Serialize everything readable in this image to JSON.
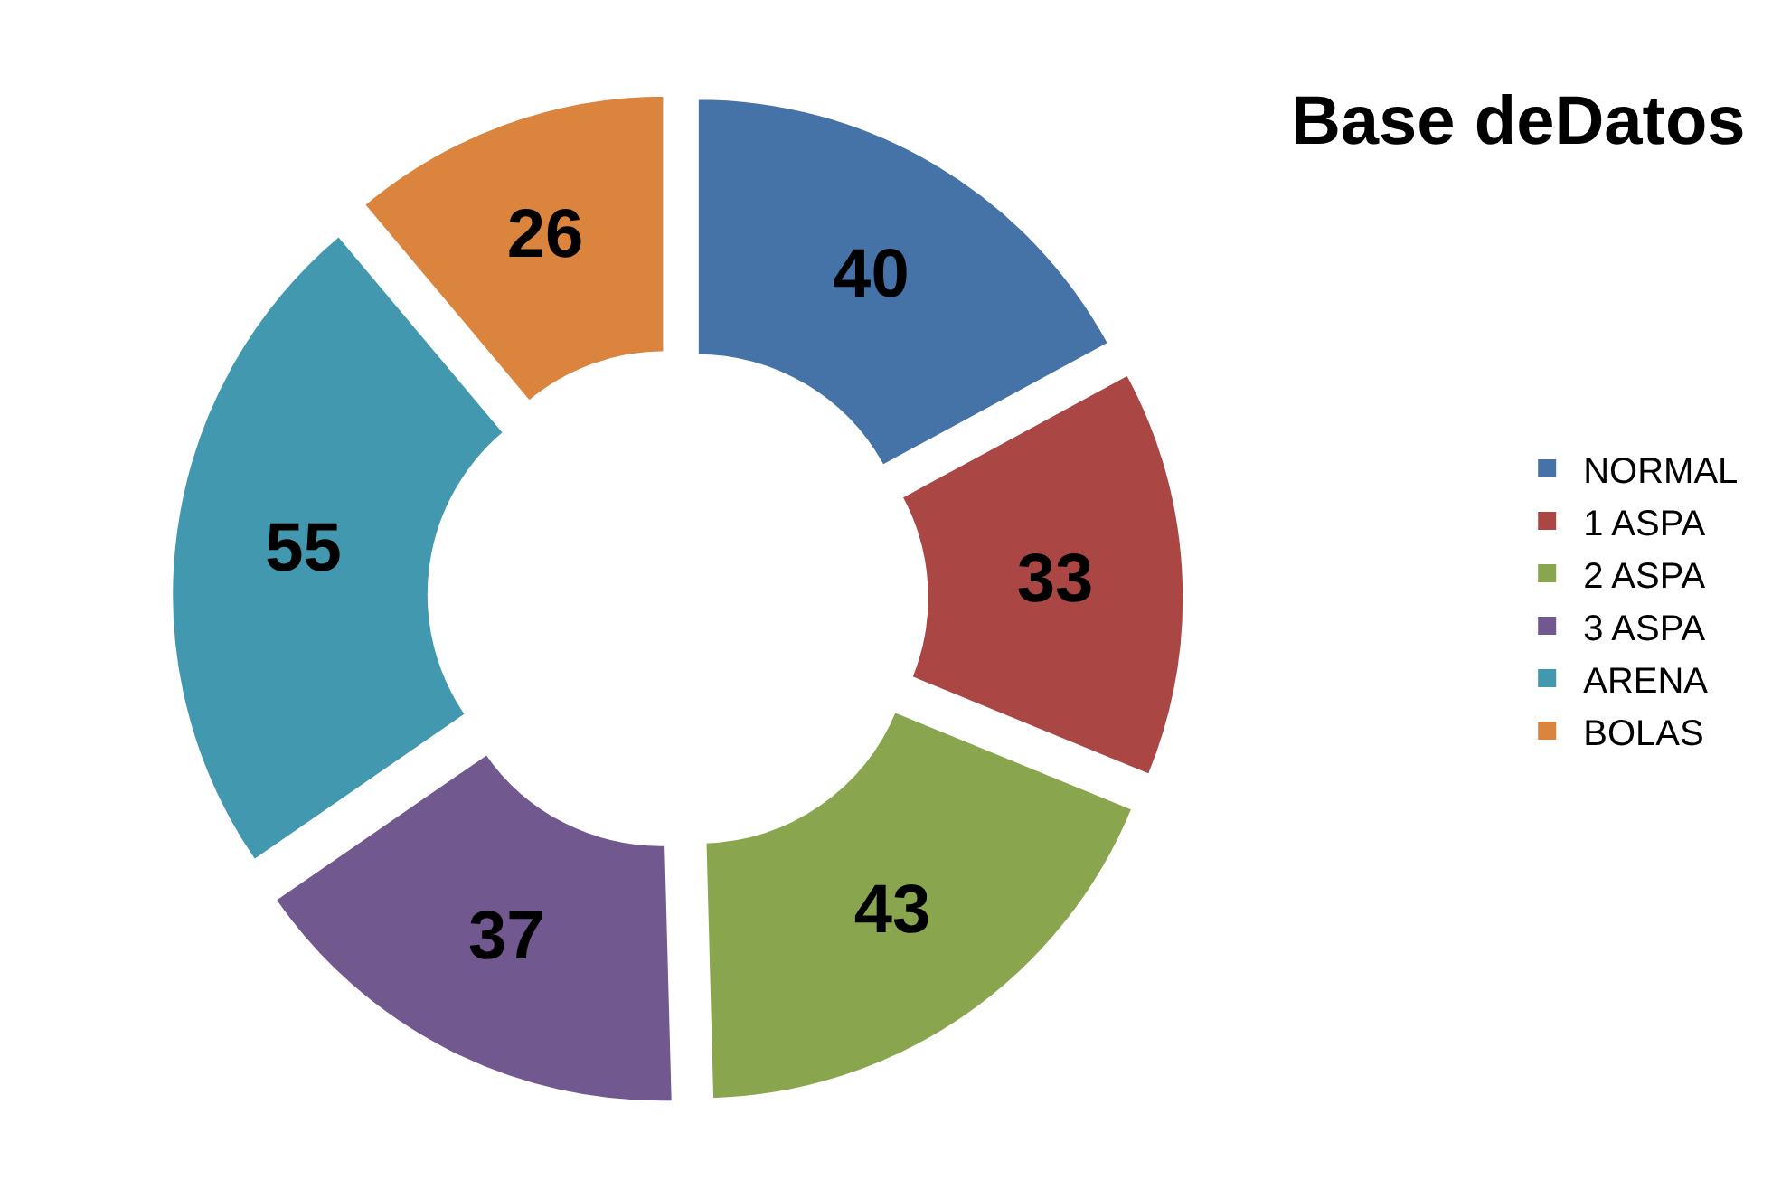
{
  "chart_data": {
    "type": "donut",
    "title": "Base deDatos",
    "categories": [
      "NORMAL",
      "1 ASPA",
      "2 ASPA",
      "3 ASPA",
      "ARENA",
      "BOLAS"
    ],
    "values": [
      40,
      33,
      43,
      37,
      55,
      26
    ],
    "colors": [
      "#4572a7",
      "#aa4643",
      "#89a54e",
      "#71588f",
      "#4198af",
      "#db843d"
    ],
    "data_labels": true,
    "legend": "right"
  }
}
